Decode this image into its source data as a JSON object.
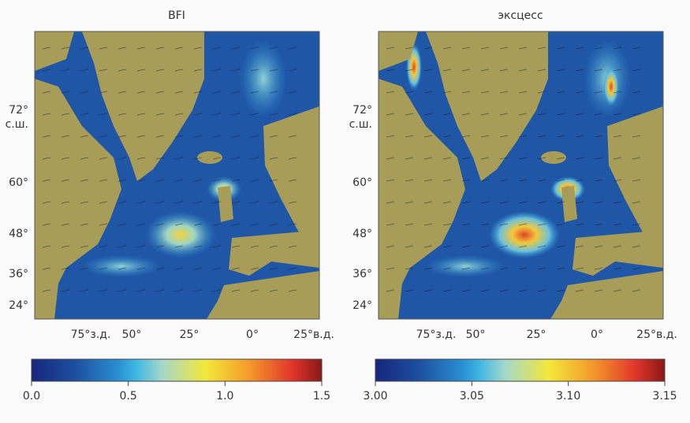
{
  "panels": [
    {
      "title": "BFI",
      "lat_labels": [
        "72°",
        "с.ш.",
        "60°",
        "48°",
        "36°",
        "24°"
      ],
      "lon_labels": [
        "75°з.д.",
        "50°",
        "25°",
        "0°",
        "25°в.д."
      ],
      "colorbar": {
        "lim": [
          0,
          1.5
        ],
        "ticks": [
          {
            "value": 0,
            "label": "0.0"
          },
          0.5,
          {
            "value": 1,
            "label": "1.0"
          },
          1.5
        ]
      }
    },
    {
      "title": "эксцесс",
      "lat_labels": [
        "72°",
        "с.ш.",
        "60°",
        "48°",
        "36°",
        "24°"
      ],
      "lon_labels": [
        "75°з.д.",
        "50°",
        "25°",
        "0°",
        "25°в.д."
      ],
      "colorbar": {
        "lim": [
          3.0,
          3.15
        ],
        "ticks": [
          {
            "value": 3,
            "label": "3.00"
          },
          3.05,
          {
            "value": 3.1,
            "label": "3.10"
          },
          3.15
        ]
      }
    }
  ]
}
